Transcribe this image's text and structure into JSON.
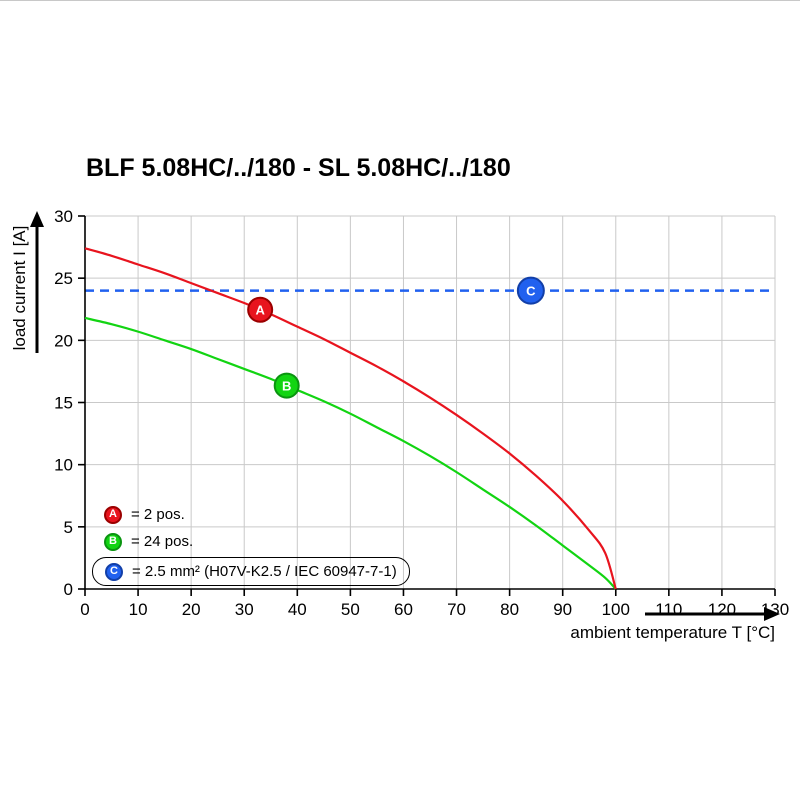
{
  "chart_data": {
    "type": "line",
    "title": "BLF 5.08HC/../180 - SL 5.08HC/../180",
    "xlabel": "ambient temperature T [°C]",
    "ylabel": "load current I [A]",
    "xlim": [
      0,
      130
    ],
    "ylim": [
      0,
      30
    ],
    "x_ticks": [
      0,
      10,
      20,
      30,
      40,
      50,
      60,
      70,
      80,
      90,
      100,
      110,
      120,
      130
    ],
    "y_ticks": [
      0,
      5,
      10,
      15,
      20,
      25,
      30
    ],
    "grid": true,
    "colors": {
      "grid": "#c9c9c9",
      "axis": "#000000"
    },
    "series": [
      {
        "id": "A",
        "legend": "= 2 pos.",
        "type": "curve",
        "color": "#e8141e",
        "edge": "#9b0000",
        "marker_t": 33,
        "points": [
          [
            0,
            27.4
          ],
          [
            5,
            26.8
          ],
          [
            10,
            26.1
          ],
          [
            15,
            25.4
          ],
          [
            20,
            24.6
          ],
          [
            25,
            23.8
          ],
          [
            30,
            23.0
          ],
          [
            35,
            22.1
          ],
          [
            40,
            21.1
          ],
          [
            45,
            20.1
          ],
          [
            50,
            19.0
          ],
          [
            55,
            17.9
          ],
          [
            60,
            16.7
          ],
          [
            65,
            15.4
          ],
          [
            70,
            14.0
          ],
          [
            75,
            12.5
          ],
          [
            80,
            10.9
          ],
          [
            85,
            9.1
          ],
          [
            90,
            7.1
          ],
          [
            95,
            4.7
          ],
          [
            98,
            2.9
          ],
          [
            100,
            0
          ]
        ]
      },
      {
        "id": "B",
        "legend": "= 24 pos.",
        "type": "curve",
        "color": "#12d412",
        "edge": "#0a9410",
        "marker_t": 38,
        "points": [
          [
            0,
            21.8
          ],
          [
            5,
            21.3
          ],
          [
            10,
            20.7
          ],
          [
            15,
            20.0
          ],
          [
            20,
            19.3
          ],
          [
            25,
            18.5
          ],
          [
            30,
            17.7
          ],
          [
            35,
            16.9
          ],
          [
            40,
            16.0
          ],
          [
            45,
            15.1
          ],
          [
            50,
            14.1
          ],
          [
            55,
            13.0
          ],
          [
            60,
            11.9
          ],
          [
            65,
            10.7
          ],
          [
            70,
            9.4
          ],
          [
            75,
            8.0
          ],
          [
            80,
            6.6
          ],
          [
            85,
            5.1
          ],
          [
            90,
            3.5
          ],
          [
            95,
            1.9
          ],
          [
            98,
            0.9
          ],
          [
            100,
            0
          ]
        ]
      },
      {
        "id": "C",
        "legend": "= 2.5 mm² (H07V-K2.5 / IEC 60947-7-1)",
        "type": "hline",
        "value": 24,
        "dashed": true,
        "color": "#2161ef",
        "edge": "#123fa8",
        "marker_t": 84
      }
    ]
  }
}
